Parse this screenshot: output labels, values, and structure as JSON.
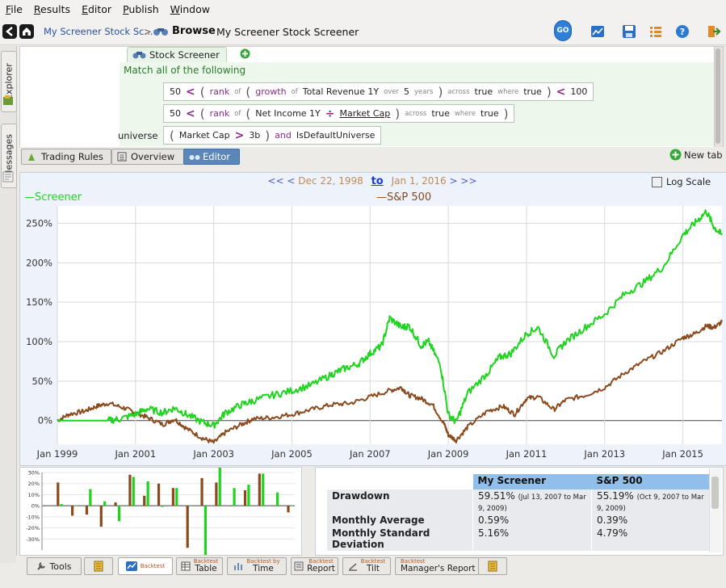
{
  "menu": [
    {
      "label": "File",
      "u": "F",
      "rest": "ile"
    },
    {
      "label": "Results",
      "u": "R",
      "rest": "esults"
    },
    {
      "label": "Editor",
      "u": "E",
      "rest": "ditor"
    },
    {
      "label": "Publish",
      "u": "P",
      "rest": "ublish"
    },
    {
      "label": "Window",
      "u": "W",
      "rest": "indow"
    }
  ],
  "toolbar": {
    "crumb_link": "My Screener Stock Sc...",
    "crumb_sep": ">",
    "browse": "Browse",
    "title": "My Screener Stock Screener",
    "go_label": "GO"
  },
  "side_tabs": [
    "Explorer",
    "Messages"
  ],
  "editor": {
    "tab_label": "Stock Screener",
    "match_text": "Match all of the following",
    "universe_label": "universe",
    "rule1": {
      "num": "50",
      "lt": "<",
      "rank": "rank",
      "of": "of",
      "growth": "growth",
      "of2": "of",
      "item": "Total Revenue 1Y",
      "over": "over",
      "years_n": "5",
      "years": "years",
      "across": "across",
      "true1": "true",
      "where": "where",
      "true2": "true",
      "lt2": "<",
      "limit": "100"
    },
    "rule2": {
      "num": "50",
      "lt": "<",
      "rank": "rank",
      "of": "of",
      "item": "Net Income 1Y",
      "div": "÷",
      "mcap": "Market Cap",
      "across": "across",
      "true1": "true",
      "where": "where",
      "true2": "true"
    },
    "rule3": {
      "mcap": "Market Cap",
      "gt": ">",
      "val": "3b",
      "and": "and",
      "univ": "IsDefaultUniverse"
    }
  },
  "subtabs": {
    "trading_rules": "Trading Rules",
    "overview": "Overview",
    "editor": "Editor",
    "new_tab": "New tab"
  },
  "chart_header": {
    "nav_back": "<< <",
    "start": "Dec 22, 1998",
    "to": "to",
    "end": "Jan 1, 2016",
    "nav_fwd": "> >>",
    "log_scale": "Log Scale"
  },
  "chart_data": {
    "type": "line",
    "xlabel": "",
    "ylabel": "",
    "ylim": [
      -30,
      272
    ],
    "xlim": [
      1999.0,
      2016.0
    ],
    "grid": true,
    "legend_position": "top",
    "x_ticks": [
      "Jan 1999",
      "Jan 2001",
      "Jan 2003",
      "Jan 2005",
      "Jan 2007",
      "Jan 2009",
      "Jan 2011",
      "Jan 2013",
      "Jan 2015"
    ],
    "y_ticks": [
      "0%",
      "50%",
      "100%",
      "150%",
      "200%",
      "250%"
    ],
    "series": [
      {
        "name": "Screener",
        "color": "#1ed41e",
        "x": [
          1999.0,
          1999.5,
          2000.0,
          2000.3,
          2000.6,
          2001.0,
          2001.3,
          2001.7,
          2002.0,
          2002.3,
          2002.7,
          2003.0,
          2003.3,
          2003.7,
          2004.0,
          2004.5,
          2005.0,
          2005.5,
          2006.0,
          2006.3,
          2006.7,
          2007.0,
          2007.3,
          2007.5,
          2007.8,
          2008.0,
          2008.3,
          2008.5,
          2008.8,
          2009.0,
          2009.2,
          2009.5,
          2010.0,
          2010.3,
          2010.6,
          2011.0,
          2011.3,
          2011.7,
          2012.0,
          2012.5,
          2013.0,
          2013.5,
          2014.0,
          2014.5,
          2015.0,
          2015.3,
          2015.6,
          2015.8,
          2016.0
        ],
        "y": [
          0,
          0,
          0,
          0,
          2,
          8,
          15,
          10,
          16,
          8,
          -2,
          -6,
          10,
          20,
          25,
          32,
          38,
          45,
          58,
          65,
          72,
          85,
          95,
          130,
          118,
          120,
          95,
          100,
          70,
          8,
          -2,
          35,
          60,
          80,
          85,
          110,
          118,
          82,
          100,
          118,
          135,
          160,
          175,
          195,
          235,
          250,
          265,
          245,
          235
        ]
      },
      {
        "name": "S&P 500",
        "color": "#8a4a1e",
        "x": [
          1999.0,
          1999.3,
          1999.7,
          2000.0,
          2000.3,
          2000.7,
          2001.0,
          2001.3,
          2001.7,
          2002.0,
          2002.3,
          2002.7,
          2003.0,
          2003.3,
          2003.7,
          2004.0,
          2004.5,
          2005.0,
          2005.5,
          2006.0,
          2006.5,
          2007.0,
          2007.5,
          2007.8,
          2008.0,
          2008.3,
          2008.6,
          2008.9,
          2009.0,
          2009.2,
          2009.5,
          2010.0,
          2010.4,
          2010.7,
          2011.0,
          2011.3,
          2011.7,
          2012.0,
          2012.5,
          2013.0,
          2013.5,
          2014.0,
          2014.5,
          2015.0,
          2015.3,
          2015.6,
          2015.8,
          2016.0
        ],
        "y": [
          0,
          8,
          12,
          18,
          22,
          16,
          10,
          4,
          -5,
          2,
          -10,
          -22,
          -28,
          -15,
          -5,
          2,
          4,
          8,
          14,
          20,
          22,
          30,
          38,
          42,
          32,
          28,
          20,
          -5,
          -18,
          -25,
          -8,
          12,
          18,
          8,
          28,
          30,
          14,
          26,
          32,
          42,
          60,
          75,
          88,
          105,
          110,
          120,
          118,
          125
        ]
      }
    ]
  },
  "bar_chart": {
    "y_ticks": [
      "30%",
      "20%",
      "10%",
      "0%",
      "-10%",
      "-20%",
      "-30%"
    ],
    "groups": [
      {
        "s": 1.5,
        "p": 21
      },
      {
        "s": 0.2,
        "p": -9
      },
      {
        "s": 15,
        "p": -8
      },
      {
        "s": 4,
        "p": -19
      },
      {
        "s": -14,
        "p": 3
      },
      {
        "s": 26,
        "p": 28
      },
      {
        "s": 22,
        "p": 9
      },
      {
        "s": -1,
        "p": 20
      },
      {
        "s": 16,
        "p": 16
      },
      {
        "s": 0,
        "p": -38
      },
      {
        "s": -50,
        "p": 25
      },
      {
        "s": 36,
        "p": 21
      },
      {
        "s": 16,
        "p": 0
      },
      {
        "s": 19,
        "p": 14
      },
      {
        "s": 29,
        "p": 29
      },
      {
        "s": 12,
        "p": 0
      },
      {
        "s": 0,
        "p": -6
      }
    ]
  },
  "stats": {
    "col1": "My Screener",
    "col2": "S&P 500",
    "rows": [
      {
        "label": "Drawdown",
        "v1": "59.51%",
        "v1_note": "(Jul 13, 2007 to Mar 9, 2009)",
        "v2": "55.19%",
        "v2_note": "(Oct 9, 2007 to Mar 9, 2009)"
      },
      {
        "label": "Monthly Average",
        "v1": "0.59%",
        "v2": "0.39%"
      },
      {
        "label": "Monthly Standard Deviation",
        "v1": "5.16%",
        "v2": "4.79%"
      }
    ]
  },
  "bottom_tabs": {
    "tools": "Tools",
    "backtest": "Backtest",
    "table_top": "Backtest",
    "table_bot": "Table",
    "time_top": "Backtest by",
    "time_bot": "Time",
    "report_top": "Backtest",
    "report_bot": "Report",
    "tilt_top": "Backtest",
    "tilt_bot": "Tilt",
    "mgr_top": "Backtest",
    "mgr_bot": "Manager's Report"
  }
}
